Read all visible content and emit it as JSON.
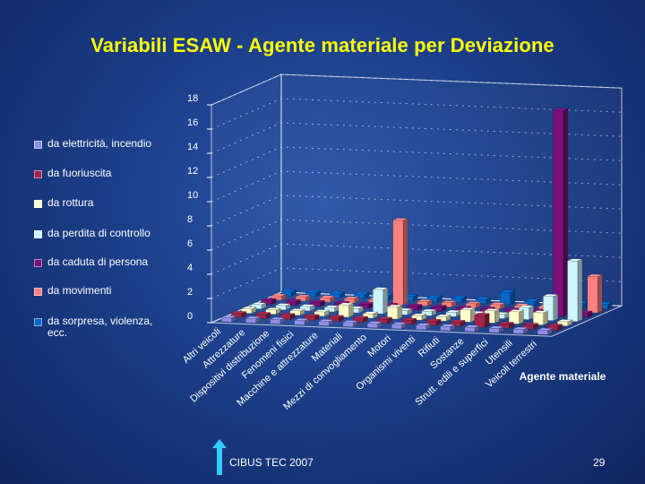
{
  "slide": {
    "title": "Variabili ESAW - Agente materiale per Deviazione",
    "footer_text": "CIBUS TEC 2007",
    "page_number": "29"
  },
  "chart_data": {
    "type": "bar",
    "variant": "3d-clustered-column",
    "title": "",
    "xlabel": "Agente materiale",
    "ylabel": "",
    "ylim": [
      0,
      18
    ],
    "ticks": [
      0,
      2,
      4,
      6,
      8,
      10,
      12,
      14,
      16,
      18
    ],
    "grid": true,
    "legend_position": "left",
    "categories": [
      "Altri veicoli",
      "Attrezzature",
      "Dispositivi distribuzione",
      "Fenomeni fisici",
      "Macchine e attrezzature",
      "Materiali",
      "Mezzi di convogliamento",
      "Motori",
      "Organismi viventi",
      "Rifiuti",
      "Sostanze",
      "Strutt. edili e superfici",
      "Utensili",
      "Veicoli terrestri"
    ],
    "series": [
      {
        "name": "da elettricità, incendio",
        "color": "#8f8fe8",
        "values": [
          0,
          0,
          0,
          0,
          0,
          0,
          0,
          0,
          0,
          0,
          0,
          0,
          0,
          0
        ]
      },
      {
        "name": "da fuoriuscita",
        "color": "#a0254a",
        "values": [
          0,
          0,
          0,
          0,
          0,
          0,
          0,
          0,
          0,
          0,
          1,
          0,
          0,
          0
        ]
      },
      {
        "name": "da rottura",
        "color": "#ffffcc",
        "values": [
          0,
          0,
          0,
          0,
          1,
          0,
          1,
          0,
          0,
          1,
          1,
          1,
          1,
          0
        ]
      },
      {
        "name": "da perdita di controllo",
        "color": "#ccf5ff",
        "values": [
          0,
          0,
          0,
          0,
          0,
          2,
          0,
          0,
          0,
          0,
          0,
          1,
          2,
          5
        ]
      },
      {
        "name": "da caduta di persona",
        "color": "#7a1178",
        "values": [
          0,
          0,
          0,
          0,
          0,
          0,
          0,
          0,
          0,
          0,
          0,
          0,
          17,
          0
        ]
      },
      {
        "name": "da movimenti",
        "color": "#ff8080",
        "values": [
          0,
          0,
          0,
          0,
          0,
          7,
          0,
          0,
          0,
          0,
          0,
          0,
          0,
          3
        ]
      },
      {
        "name": "da sorpresa, violenza, ecc.",
        "color": "#0066cc",
        "values": [
          0,
          0,
          0,
          0,
          0,
          0,
          0,
          0,
          0,
          1,
          0,
          0,
          0,
          0
        ]
      }
    ]
  }
}
